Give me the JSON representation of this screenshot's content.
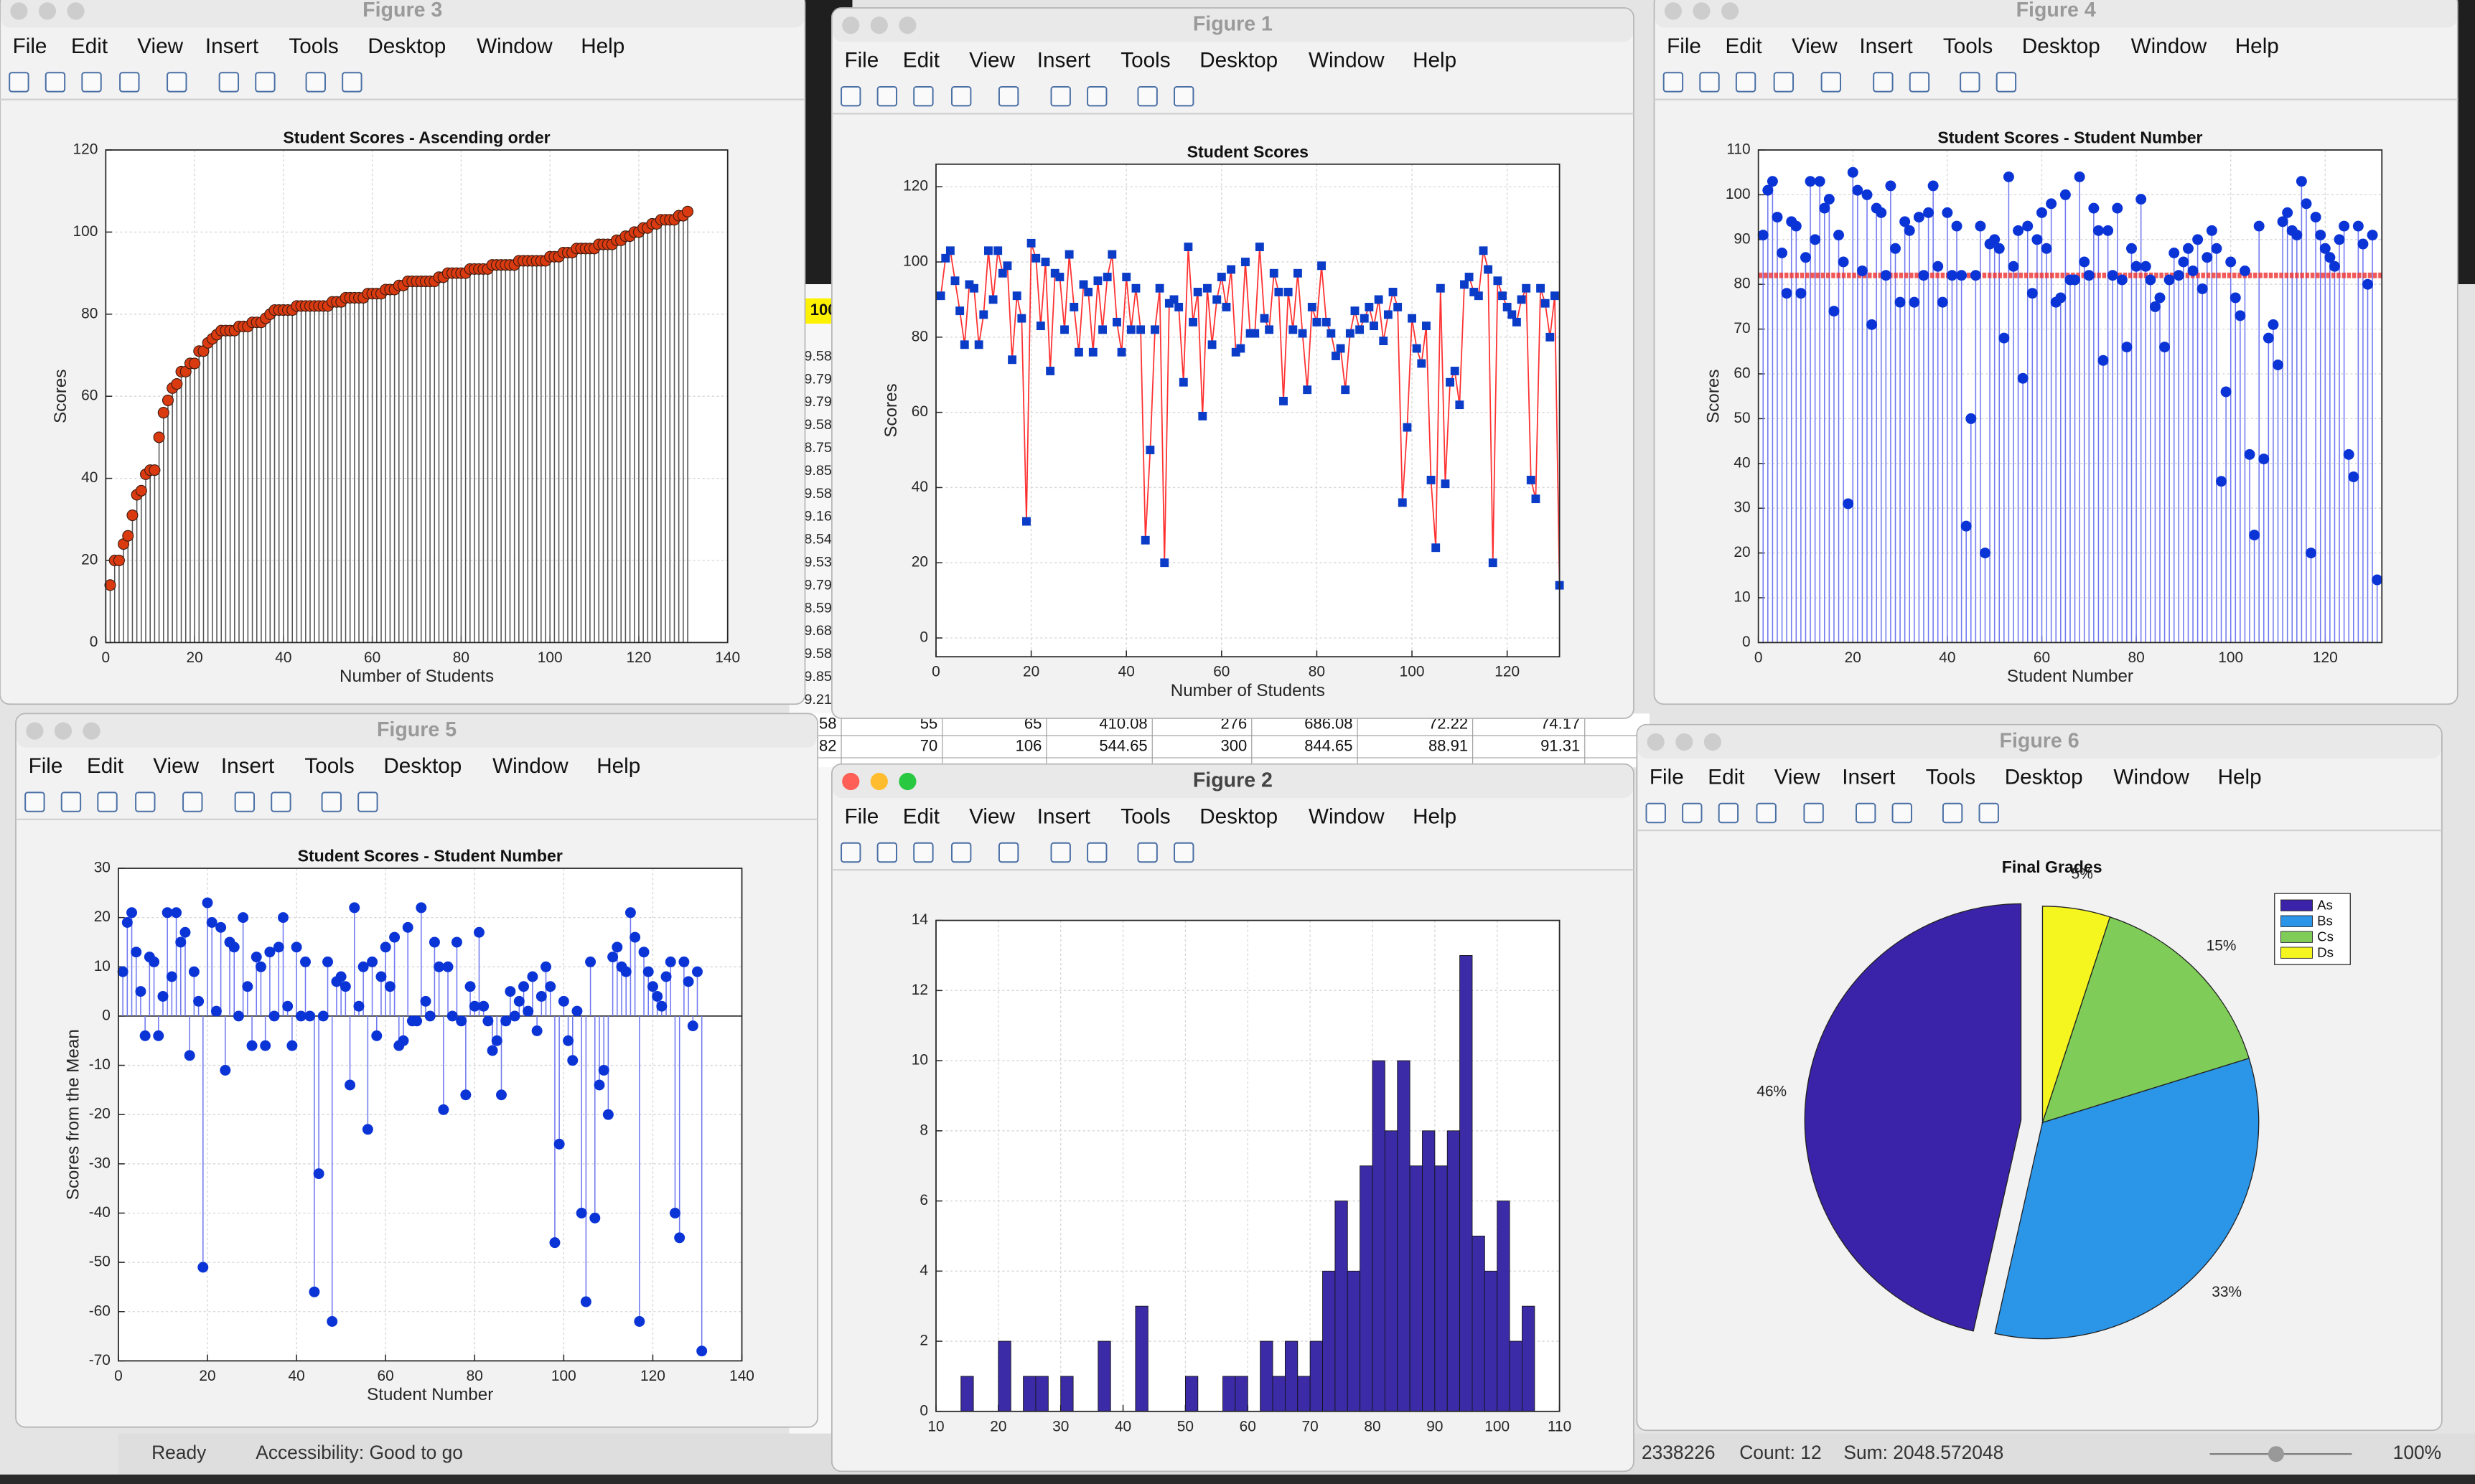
{
  "windows": [
    {
      "title": "Figure 3"
    },
    {
      "title": "Figure 1"
    },
    {
      "title": "Figure 4"
    },
    {
      "title": "Figure 5"
    },
    {
      "title": "Figure 2"
    },
    {
      "title": "Figure 6"
    }
  ],
  "menu": [
    "File",
    "Edit",
    "View",
    "Insert",
    "Tools",
    "Desktop",
    "Window",
    "Help"
  ],
  "sheet": {
    "highlight": "100",
    "column": [
      "9.58",
      "9.79",
      "9.79",
      "9.58",
      "8.75",
      "9.85",
      "9.58",
      "9.16",
      "8.54",
      "9.53",
      "9.79",
      "8.59",
      "9.68",
      "9.58",
      "9.85",
      "9.21"
    ],
    "rows": [
      [
        "58",
        "55",
        "65",
        "410.08",
        "276",
        "686.08",
        "72.22",
        "74.17"
      ],
      [
        "82",
        "70",
        "106",
        "544.65",
        "300",
        "844.65",
        "88.91",
        "91.31"
      ]
    ]
  },
  "status_bar": {
    "state": "Ready",
    "accessibility": "Accessibility: Good to go",
    "average": "2338226",
    "count": "Count: 12",
    "sum": "Sum: 2048.572048",
    "zoom": "100%"
  },
  "chart_data": [
    {
      "type": "stem",
      "title": "Student Scores - Ascending order",
      "xlabel": "Number of Students",
      "ylabel": "Scores",
      "x": [
        1,
        2,
        3,
        4,
        5,
        6,
        7,
        8,
        9,
        10,
        11,
        12,
        13,
        14,
        15,
        16,
        17,
        18,
        19,
        20,
        21,
        22,
        23,
        24,
        25,
        26,
        27,
        28,
        29,
        30,
        31,
        32,
        33,
        34,
        35,
        36,
        37,
        38,
        39,
        40,
        41,
        42,
        43,
        44,
        45,
        46,
        47,
        48,
        49,
        50,
        51,
        52,
        53,
        54,
        55,
        56,
        57,
        58,
        59,
        60,
        61,
        62,
        63,
        64,
        65,
        66,
        67,
        68,
        69,
        70,
        71,
        72,
        73,
        74,
        75,
        76,
        77,
        78,
        79,
        80,
        81,
        82,
        83,
        84,
        85,
        86,
        87,
        88,
        89,
        90,
        91,
        92,
        93,
        94,
        95,
        96,
        97,
        98,
        99,
        100,
        101,
        102,
        103,
        104,
        105,
        106,
        107,
        108,
        109,
        110,
        111,
        112,
        113,
        114,
        115,
        116,
        117,
        118,
        119,
        120,
        121,
        122,
        123,
        124,
        125,
        126,
        127,
        128,
        129,
        130,
        131
      ],
      "values": [
        14,
        20,
        20,
        24,
        26,
        31,
        36,
        37,
        41,
        42,
        42,
        50,
        56,
        59,
        62,
        63,
        66,
        66,
        68,
        68,
        71,
        71,
        73,
        74,
        75,
        76,
        76,
        76,
        76,
        77,
        77,
        77,
        78,
        78,
        78,
        79,
        80,
        81,
        81,
        81,
        81,
        81,
        82,
        82,
        82,
        82,
        82,
        82,
        82,
        82,
        83,
        83,
        83,
        84,
        84,
        84,
        84,
        84,
        85,
        85,
        85,
        85,
        86,
        86,
        86,
        87,
        87,
        88,
        88,
        88,
        88,
        88,
        88,
        88,
        89,
        89,
        90,
        90,
        90,
        90,
        90,
        91,
        91,
        91,
        91,
        91,
        92,
        92,
        92,
        92,
        92,
        92,
        93,
        93,
        93,
        93,
        93,
        93,
        93,
        94,
        94,
        94,
        95,
        95,
        95,
        96,
        96,
        96,
        96,
        96,
        97,
        97,
        97,
        97,
        98,
        98,
        99,
        99,
        100,
        100,
        101,
        101,
        102,
        102,
        103,
        103,
        103,
        103,
        104,
        104,
        105
      ],
      "color": "#d93a10",
      "stem_color": "#555555",
      "xlim": [
        0,
        140
      ],
      "xticks": [
        0,
        20,
        40,
        60,
        80,
        100,
        120,
        140
      ],
      "ylim": [
        0,
        120
      ],
      "yticks": [
        0,
        20,
        40,
        60,
        80,
        100,
        120
      ],
      "grid": true
    },
    {
      "type": "line",
      "title": "Student Scores",
      "xlabel": "Number of Students",
      "ylabel": "Scores",
      "x": [
        1,
        2,
        3,
        4,
        5,
        6,
        7,
        8,
        9,
        10,
        11,
        12,
        13,
        14,
        15,
        16,
        17,
        18,
        19,
        20,
        21,
        22,
        23,
        24,
        25,
        26,
        27,
        28,
        29,
        30,
        31,
        32,
        33,
        34,
        35,
        36,
        37,
        38,
        39,
        40,
        41,
        42,
        43,
        44,
        45,
        46,
        47,
        48,
        49,
        50,
        51,
        52,
        53,
        54,
        55,
        56,
        57,
        58,
        59,
        60,
        61,
        62,
        63,
        64,
        65,
        66,
        67,
        68,
        69,
        70,
        71,
        72,
        73,
        74,
        75,
        76,
        77,
        78,
        79,
        80,
        81,
        82,
        83,
        84,
        85,
        86,
        87,
        88,
        89,
        90,
        91,
        92,
        93,
        94,
        95,
        96,
        97,
        98,
        99,
        100,
        101,
        102,
        103,
        104,
        105,
        106,
        107,
        108,
        109,
        110,
        111,
        112,
        113,
        114,
        115,
        116,
        117,
        118,
        119,
        120,
        121,
        122,
        123,
        124,
        125,
        126,
        127,
        128,
        129,
        130,
        131
      ],
      "values": [
        91,
        101,
        103,
        95,
        87,
        78,
        94,
        93,
        78,
        86,
        103,
        90,
        103,
        97,
        99,
        74,
        91,
        85,
        31,
        105,
        101,
        83,
        100,
        71,
        97,
        96,
        82,
        102,
        88,
        76,
        94,
        92,
        76,
        95,
        82,
        96,
        102,
        84,
        76,
        96,
        82,
        93,
        82,
        26,
        50,
        82,
        93,
        20,
        89,
        90,
        88,
        68,
        104,
        84,
        92,
        59,
        93,
        78,
        90,
        96,
        88,
        98,
        76,
        77,
        100,
        81,
        81,
        104,
        85,
        82,
        97,
        92,
        63,
        92,
        82,
        97,
        81,
        66,
        88,
        84,
        99,
        84,
        81,
        75,
        77,
        66,
        81,
        87,
        82,
        85,
        88,
        83,
        90,
        79,
        86,
        92,
        88,
        36,
        56,
        85,
        77,
        73,
        83,
        42,
        24,
        93,
        41,
        68,
        71,
        62,
        94,
        96,
        92,
        91,
        103,
        98,
        20,
        95,
        91,
        88,
        86,
        84,
        90,
        93,
        42,
        37,
        93,
        89,
        80,
        91,
        14
      ],
      "line_color": "#ff3030",
      "color": "#0a3cc8",
      "xlim": [
        0,
        131
      ],
      "xticks": [
        0,
        20,
        40,
        60,
        80,
        100,
        120
      ],
      "ylim": [
        -5,
        126
      ],
      "yticks": [
        0,
        20,
        40,
        60,
        80,
        100,
        120
      ],
      "grid": true
    },
    {
      "type": "stem",
      "title": "Student Scores - Student Number",
      "xlabel": "Student Number",
      "ylabel": "Scores",
      "x": [
        1,
        2,
        3,
        4,
        5,
        6,
        7,
        8,
        9,
        10,
        11,
        12,
        13,
        14,
        15,
        16,
        17,
        18,
        19,
        20,
        21,
        22,
        23,
        24,
        25,
        26,
        27,
        28,
        29,
        30,
        31,
        32,
        33,
        34,
        35,
        36,
        37,
        38,
        39,
        40,
        41,
        42,
        43,
        44,
        45,
        46,
        47,
        48,
        49,
        50,
        51,
        52,
        53,
        54,
        55,
        56,
        57,
        58,
        59,
        60,
        61,
        62,
        63,
        64,
        65,
        66,
        67,
        68,
        69,
        70,
        71,
        72,
        73,
        74,
        75,
        76,
        77,
        78,
        79,
        80,
        81,
        82,
        83,
        84,
        85,
        86,
        87,
        88,
        89,
        90,
        91,
        92,
        93,
        94,
        95,
        96,
        97,
        98,
        99,
        100,
        101,
        102,
        103,
        104,
        105,
        106,
        107,
        108,
        109,
        110,
        111,
        112,
        113,
        114,
        115,
        116,
        117,
        118,
        119,
        120,
        121,
        122,
        123,
        124,
        125,
        126,
        127,
        128,
        129,
        130,
        131
      ],
      "values": [
        91,
        101,
        103,
        95,
        87,
        78,
        94,
        93,
        78,
        86,
        103,
        90,
        103,
        97,
        99,
        74,
        91,
        85,
        31,
        105,
        101,
        83,
        100,
        71,
        97,
        96,
        82,
        102,
        88,
        76,
        94,
        92,
        76,
        95,
        82,
        96,
        102,
        84,
        76,
        96,
        82,
        93,
        82,
        26,
        50,
        82,
        93,
        20,
        89,
        90,
        88,
        68,
        104,
        84,
        92,
        59,
        93,
        78,
        90,
        96,
        88,
        98,
        76,
        77,
        100,
        81,
        81,
        104,
        85,
        82,
        97,
        92,
        63,
        92,
        82,
        97,
        81,
        66,
        88,
        84,
        99,
        84,
        81,
        75,
        77,
        66,
        81,
        87,
        82,
        85,
        88,
        83,
        90,
        79,
        86,
        92,
        88,
        36,
        56,
        85,
        77,
        73,
        83,
        42,
        24,
        93,
        41,
        68,
        71,
        62,
        94,
        96,
        92,
        91,
        103,
        98,
        20,
        95,
        91,
        88,
        86,
        84,
        90,
        93,
        42,
        37,
        93,
        89,
        80,
        91,
        14
      ],
      "color": "#0b34d6",
      "stem_color": "#6f78f0",
      "mean_line": {
        "value": 82,
        "color": "#f03030"
      },
      "xlim": [
        0,
        132
      ],
      "xticks": [
        0,
        20,
        40,
        60,
        80,
        100,
        120
      ],
      "ylim": [
        0,
        110
      ],
      "yticks": [
        0,
        10,
        20,
        30,
        40,
        50,
        60,
        70,
        80,
        90,
        100,
        110
      ],
      "grid": true
    },
    {
      "type": "stem",
      "title": "Student Scores - Student Number",
      "xlabel": "Student Number",
      "ylabel": "Scores from the Mean",
      "x": [
        1,
        2,
        3,
        4,
        5,
        6,
        7,
        8,
        9,
        10,
        11,
        12,
        13,
        14,
        15,
        16,
        17,
        18,
        19,
        20,
        21,
        22,
        23,
        24,
        25,
        26,
        27,
        28,
        29,
        30,
        31,
        32,
        33,
        34,
        35,
        36,
        37,
        38,
        39,
        40,
        41,
        42,
        43,
        44,
        45,
        46,
        47,
        48,
        49,
        50,
        51,
        52,
        53,
        54,
        55,
        56,
        57,
        58,
        59,
        60,
        61,
        62,
        63,
        64,
        65,
        66,
        67,
        68,
        69,
        70,
        71,
        72,
        73,
        74,
        75,
        76,
        77,
        78,
        79,
        80,
        81,
        82,
        83,
        84,
        85,
        86,
        87,
        88,
        89,
        90,
        91,
        92,
        93,
        94,
        95,
        96,
        97,
        98,
        99,
        100,
        101,
        102,
        103,
        104,
        105,
        106,
        107,
        108,
        109,
        110,
        111,
        112,
        113,
        114,
        115,
        116,
        117,
        118,
        119,
        120,
        121,
        122,
        123,
        124,
        125,
        126,
        127,
        128,
        129,
        130,
        131
      ],
      "values": [
        9,
        19,
        21,
        13,
        5,
        -4,
        12,
        11,
        -4,
        4,
        21,
        8,
        21,
        15,
        17,
        -8,
        9,
        3,
        -51,
        23,
        19,
        1,
        18,
        -11,
        15,
        14,
        0,
        20,
        6,
        -6,
        12,
        10,
        -6,
        13,
        0,
        14,
        20,
        2,
        -6,
        14,
        0,
        11,
        0,
        -56,
        -32,
        0,
        11,
        -62,
        7,
        8,
        6,
        -14,
        22,
        2,
        10,
        -23,
        11,
        -4,
        8,
        14,
        6,
        16,
        -6,
        -5,
        18,
        -1,
        -1,
        22,
        3,
        0,
        15,
        10,
        -19,
        10,
        0,
        15,
        -1,
        -16,
        6,
        2,
        17,
        2,
        -1,
        -7,
        -5,
        -16,
        -1,
        5,
        0,
        3,
        6,
        1,
        8,
        -3,
        4,
        10,
        6,
        -46,
        -26,
        3,
        -5,
        -9,
        1,
        -40,
        -58,
        11,
        -41,
        -14,
        -11,
        -20,
        12,
        14,
        10,
        9,
        21,
        16,
        -62,
        13,
        9,
        6,
        4,
        2,
        8,
        11,
        -40,
        -45,
        11,
        7,
        -2,
        9,
        -68
      ],
      "color": "#0b34d6",
      "stem_color": "#6f78f0",
      "xlim": [
        0,
        140
      ],
      "xticks": [
        0,
        20,
        40,
        60,
        80,
        100,
        120,
        140
      ],
      "ylim": [
        -70,
        30
      ],
      "yticks": [
        -70,
        -60,
        -50,
        -40,
        -30,
        -20,
        -10,
        0,
        10,
        20,
        30
      ],
      "grid": true
    },
    {
      "type": "histogram",
      "bins": [
        14,
        16,
        18,
        20,
        22,
        24,
        26,
        28,
        30,
        32,
        34,
        36,
        38,
        40,
        42,
        44,
        46,
        48,
        50,
        52,
        54,
        56,
        58,
        60,
        62,
        64,
        66,
        68,
        70,
        72,
        74,
        76,
        78,
        80,
        82,
        84,
        86,
        88,
        90,
        92,
        94,
        96,
        98,
        100,
        102,
        104,
        106
      ],
      "values": [
        1,
        0,
        0,
        2,
        0,
        1,
        1,
        0,
        1,
        0,
        0,
        2,
        0,
        0,
        3,
        0,
        0,
        0,
        1,
        0,
        0,
        1,
        1,
        0,
        2,
        1,
        2,
        1,
        2,
        4,
        6,
        4,
        7,
        10,
        8,
        10,
        7,
        8,
        7,
        8,
        13,
        5,
        4,
        6,
        2,
        3
      ],
      "color": "#3b2ba6",
      "xlim": [
        10,
        110
      ],
      "xticks": [
        10,
        20,
        30,
        40,
        50,
        60,
        70,
        80,
        90,
        100,
        110
      ],
      "ylim": [
        0,
        14
      ],
      "yticks": [
        0,
        2,
        4,
        6,
        8,
        10,
        12,
        14
      ],
      "grid": true
    },
    {
      "type": "pie",
      "title": "Final Grades",
      "categories": [
        "As",
        "Bs",
        "Cs",
        "Ds"
      ],
      "values": [
        46,
        33,
        15,
        5
      ],
      "value_labels": [
        "46%",
        "33%",
        "15%",
        "5%"
      ],
      "colors": [
        "#3a23a8",
        "#2b95e8",
        "#7fcc58",
        "#f5f51f"
      ],
      "explode": [
        true,
        false,
        false,
        false
      ],
      "legend": "northeast"
    }
  ]
}
